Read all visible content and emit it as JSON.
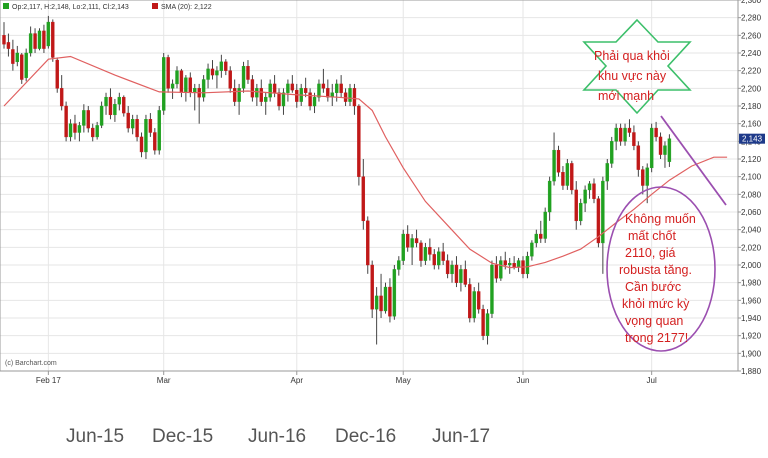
{
  "chart_data": {
    "type": "candlestick",
    "legend": {
      "ohlc_label": "Op:2,117, H:2,148, Lo:2,111, Cl:2,143",
      "sma_label": "SMA (20): 2,122"
    },
    "y_ticks": [
      "2,300",
      "2,280",
      "2,260",
      "2,240",
      "2,220",
      "2,200",
      "2,180",
      "2,160",
      "2,140",
      "2,120",
      "2,100",
      "2,080",
      "2,060",
      "2,040",
      "2,020",
      "2,000",
      "1,980",
      "1,960",
      "1,940",
      "1,920",
      "1,900",
      "1,880"
    ],
    "ylim": [
      1880,
      2300
    ],
    "last_price_label": "2,143",
    "x_tick_labels": [
      {
        "label": "Feb 17",
        "index": 10
      },
      {
        "label": "Mar",
        "index": 36
      },
      {
        "label": "Apr",
        "index": 66
      },
      {
        "label": "May",
        "index": 90
      },
      {
        "label": "Jun",
        "index": 117
      },
      {
        "label": "Jul",
        "index": 146
      }
    ],
    "watermark": "(c) Barchart.com",
    "contract_labels": [
      "Jun-15",
      "Dec-15",
      "Jun-16",
      "Dec-16",
      "Jun-17"
    ],
    "candles": [
      [
        2260,
        2275,
        2245,
        2250
      ],
      [
        2252,
        2262,
        2236,
        2245
      ],
      [
        2244,
        2255,
        2220,
        2228
      ],
      [
        2230,
        2248,
        2225,
        2240
      ],
      [
        2238,
        2240,
        2205,
        2210
      ],
      [
        2212,
        2245,
        2208,
        2240
      ],
      [
        2240,
        2270,
        2236,
        2262
      ],
      [
        2262,
        2268,
        2240,
        2245
      ],
      [
        2245,
        2268,
        2243,
        2265
      ],
      [
        2265,
        2272,
        2240,
        2245
      ],
      [
        2248,
        2282,
        2245,
        2275
      ],
      [
        2275,
        2278,
        2230,
        2235
      ],
      [
        2232,
        2235,
        2195,
        2200
      ],
      [
        2200,
        2215,
        2175,
        2180
      ],
      [
        2180,
        2185,
        2140,
        2145
      ],
      [
        2145,
        2165,
        2140,
        2160
      ],
      [
        2160,
        2170,
        2142,
        2150
      ],
      [
        2150,
        2162,
        2140,
        2158
      ],
      [
        2158,
        2182,
        2150,
        2175
      ],
      [
        2175,
        2180,
        2150,
        2155
      ],
      [
        2155,
        2160,
        2140,
        2145
      ],
      [
        2145,
        2162,
        2142,
        2158
      ],
      [
        2158,
        2185,
        2155,
        2180
      ],
      [
        2180,
        2195,
        2170,
        2190
      ],
      [
        2190,
        2200,
        2165,
        2170
      ],
      [
        2170,
        2188,
        2162,
        2182
      ],
      [
        2182,
        2195,
        2175,
        2190
      ],
      [
        2190,
        2192,
        2168,
        2172
      ],
      [
        2172,
        2180,
        2150,
        2155
      ],
      [
        2155,
        2170,
        2148,
        2165
      ],
      [
        2165,
        2170,
        2140,
        2145
      ],
      [
        2145,
        2150,
        2122,
        2128
      ],
      [
        2128,
        2170,
        2120,
        2165
      ],
      [
        2165,
        2172,
        2145,
        2150
      ],
      [
        2150,
        2155,
        2125,
        2130
      ],
      [
        2130,
        2180,
        2125,
        2175
      ],
      [
        2175,
        2240,
        2170,
        2235
      ],
      [
        2235,
        2238,
        2195,
        2200
      ],
      [
        2200,
        2210,
        2188,
        2205
      ],
      [
        2205,
        2225,
        2200,
        2220
      ],
      [
        2220,
        2222,
        2190,
        2195
      ],
      [
        2195,
        2215,
        2185,
        2212
      ],
      [
        2212,
        2218,
        2190,
        2195
      ],
      [
        2195,
        2205,
        2175,
        2200
      ],
      [
        2200,
        2205,
        2160,
        2190
      ],
      [
        2190,
        2215,
        2185,
        2210
      ],
      [
        2210,
        2228,
        2200,
        2222
      ],
      [
        2222,
        2232,
        2210,
        2215
      ],
      [
        2215,
        2225,
        2200,
        2220
      ],
      [
        2220,
        2238,
        2212,
        2230
      ],
      [
        2230,
        2233,
        2215,
        2220
      ],
      [
        2220,
        2225,
        2195,
        2200
      ],
      [
        2200,
        2210,
        2180,
        2185
      ],
      [
        2185,
        2205,
        2170,
        2200
      ],
      [
        2200,
        2230,
        2195,
        2225
      ],
      [
        2225,
        2232,
        2205,
        2210
      ],
      [
        2210,
        2215,
        2185,
        2190
      ],
      [
        2190,
        2205,
        2180,
        2200
      ],
      [
        2200,
        2210,
        2180,
        2185
      ],
      [
        2185,
        2195,
        2170,
        2190
      ],
      [
        2190,
        2210,
        2185,
        2205
      ],
      [
        2205,
        2215,
        2190,
        2195
      ],
      [
        2195,
        2200,
        2175,
        2180
      ],
      [
        2180,
        2200,
        2170,
        2195
      ],
      [
        2195,
        2210,
        2185,
        2205
      ],
      [
        2205,
        2215,
        2195,
        2198
      ],
      [
        2198,
        2205,
        2178,
        2185
      ],
      [
        2185,
        2205,
        2180,
        2200
      ],
      [
        2200,
        2212,
        2190,
        2195
      ],
      [
        2195,
        2200,
        2175,
        2180
      ],
      [
        2180,
        2195,
        2172,
        2190
      ],
      [
        2190,
        2210,
        2185,
        2205
      ],
      [
        2205,
        2222,
        2195,
        2200
      ],
      [
        2200,
        2210,
        2185,
        2190
      ],
      [
        2190,
        2205,
        2180,
        2195
      ],
      [
        2195,
        2210,
        2185,
        2205
      ],
      [
        2205,
        2215,
        2190,
        2195
      ],
      [
        2195,
        2200,
        2180,
        2185
      ],
      [
        2185,
        2205,
        2180,
        2200
      ],
      [
        2200,
        2205,
        2170,
        2180
      ],
      [
        2180,
        2182,
        2090,
        2100
      ],
      [
        2100,
        2120,
        2040,
        2050
      ],
      [
        2050,
        2055,
        1990,
        2000
      ],
      [
        2000,
        2005,
        1940,
        1950
      ],
      [
        1950,
        1975,
        1910,
        1965
      ],
      [
        1965,
        1990,
        1940,
        1948
      ],
      [
        1948,
        1980,
        1945,
        1975
      ],
      [
        1975,
        1985,
        1935,
        1942
      ],
      [
        1942,
        2000,
        1938,
        1995
      ],
      [
        1995,
        2010,
        1988,
        2005
      ],
      [
        2005,
        2040,
        2000,
        2035
      ],
      [
        2035,
        2045,
        2015,
        2020
      ],
      [
        2020,
        2035,
        2000,
        2030
      ],
      [
        2030,
        2040,
        2020,
        2025
      ],
      [
        2025,
        2028,
        1998,
        2005
      ],
      [
        2005,
        2025,
        2000,
        2020
      ],
      [
        2020,
        2030,
        2005,
        2012
      ],
      [
        2012,
        2018,
        1995,
        2000
      ],
      [
        2000,
        2020,
        1995,
        2015
      ],
      [
        2015,
        2025,
        2000,
        2005
      ],
      [
        2005,
        2012,
        1985,
        1990
      ],
      [
        1990,
        2005,
        1980,
        2000
      ],
      [
        2000,
        2010,
        1975,
        1980
      ],
      [
        1980,
        2000,
        1970,
        1995
      ],
      [
        1995,
        2005,
        1975,
        1978
      ],
      [
        1978,
        1985,
        1935,
        1940
      ],
      [
        1940,
        1975,
        1935,
        1970
      ],
      [
        1970,
        1980,
        1945,
        1950
      ],
      [
        1950,
        1955,
        1915,
        1920
      ],
      [
        1920,
        1950,
        1910,
        1945
      ],
      [
        1945,
        2005,
        1940,
        2000
      ],
      [
        2000,
        2010,
        1980,
        1985
      ],
      [
        1985,
        2010,
        1982,
        2005
      ],
      [
        2005,
        2015,
        1995,
        2000
      ],
      [
        2000,
        2008,
        1990,
        2002
      ],
      [
        2002,
        2010,
        1995,
        1998
      ],
      [
        1998,
        2008,
        1992,
        2005
      ],
      [
        2005,
        2010,
        1985,
        1990
      ],
      [
        1990,
        2015,
        1985,
        2010
      ],
      [
        2010,
        2028,
        2005,
        2025
      ],
      [
        2025,
        2040,
        2020,
        2035
      ],
      [
        2035,
        2050,
        2025,
        2030
      ],
      [
        2030,
        2065,
        2025,
        2060
      ],
      [
        2060,
        2100,
        2050,
        2095
      ],
      [
        2095,
        2150,
        2090,
        2130
      ],
      [
        2130,
        2135,
        2100,
        2105
      ],
      [
        2105,
        2112,
        2085,
        2090
      ],
      [
        2090,
        2120,
        2085,
        2115
      ],
      [
        2115,
        2118,
        2080,
        2085
      ],
      [
        2085,
        2095,
        2040,
        2050
      ],
      [
        2050,
        2075,
        2045,
        2070
      ],
      [
        2070,
        2090,
        2060,
        2085
      ],
      [
        2085,
        2095,
        2075,
        2092
      ],
      [
        2092,
        2098,
        2070,
        2075
      ],
      [
        2075,
        2078,
        2020,
        2025
      ],
      [
        2025,
        2100,
        1990,
        2095
      ],
      [
        2095,
        2120,
        2085,
        2115
      ],
      [
        2115,
        2145,
        2110,
        2140
      ],
      [
        2140,
        2160,
        2130,
        2155
      ],
      [
        2155,
        2160,
        2135,
        2140
      ],
      [
        2140,
        2160,
        2135,
        2155
      ],
      [
        2155,
        2165,
        2145,
        2150
      ],
      [
        2150,
        2158,
        2130,
        2135
      ],
      [
        2135,
        2140,
        2100,
        2108
      ],
      [
        2108,
        2112,
        2080,
        2090
      ],
      [
        2090,
        2115,
        2070,
        2110
      ],
      [
        2110,
        2160,
        2105,
        2155
      ],
      [
        2155,
        2162,
        2140,
        2145
      ],
      [
        2145,
        2150,
        2120,
        2125
      ],
      [
        2125,
        2140,
        2110,
        2135
      ],
      [
        2117,
        2148,
        2111,
        2143
      ]
    ],
    "sma": [
      [
        0,
        2180
      ],
      [
        10,
        2233
      ],
      [
        15,
        2236
      ],
      [
        25,
        2215
      ],
      [
        35,
        2196
      ],
      [
        45,
        2195
      ],
      [
        55,
        2197
      ],
      [
        65,
        2193
      ],
      [
        75,
        2190
      ],
      [
        80,
        2188
      ],
      [
        83,
        2175
      ],
      [
        86,
        2145
      ],
      [
        90,
        2110
      ],
      [
        95,
        2072
      ],
      [
        100,
        2045
      ],
      [
        105,
        2018
      ],
      [
        110,
        2002
      ],
      [
        114,
        1997
      ],
      [
        118,
        1998
      ],
      [
        122,
        2003
      ],
      [
        126,
        2010
      ],
      [
        130,
        2018
      ],
      [
        134,
        2032
      ],
      [
        138,
        2048
      ],
      [
        142,
        2063
      ],
      [
        146,
        2080
      ],
      [
        150,
        2096
      ],
      [
        155,
        2112
      ],
      [
        160,
        2122
      ],
      [
        163,
        2122
      ]
    ]
  },
  "annotations": {
    "star_text": [
      "Phải qua khỏi",
      "khu vực này",
      "mới mạnh"
    ],
    "circle_text": [
      "Không muốn",
      "mất chốt",
      "2110, giá",
      "robusta tăng.",
      "Cần bước",
      "khỏi mức kỳ",
      "vọng quan",
      "trong 2177!"
    ],
    "colors": {
      "up": "#21a121",
      "down": "#c01818",
      "sma": "#e06060",
      "star": "#3cbf6a",
      "circle": "#9b4fb0",
      "trend": "#9b4fb0",
      "text": "#d42020"
    }
  }
}
